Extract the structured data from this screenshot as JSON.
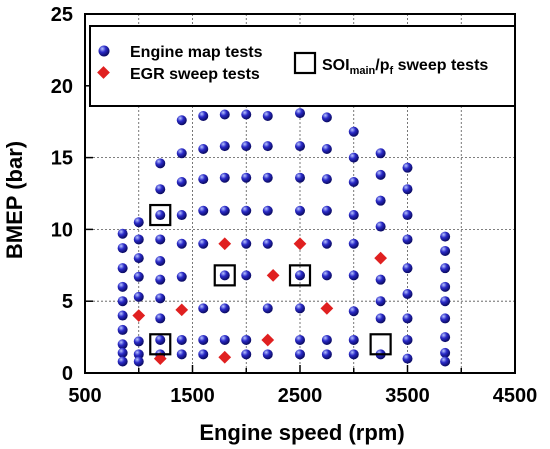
{
  "chart_data": {
    "type": "scatter",
    "xlabel": "Engine speed (rpm)",
    "ylabel": "BMEP (bar)",
    "xlim": [
      500,
      4500
    ],
    "ylim": [
      0,
      25
    ],
    "x_ticks": [
      "500",
      "1500",
      "2500",
      "3500",
      "4500"
    ],
    "y_ticks": [
      "0",
      "5",
      "10",
      "15",
      "20",
      "25"
    ],
    "grid": "dotted",
    "legend_placement": "top",
    "legend": {
      "engine_map": "Engine map tests",
      "egr": "EGR sweep tests",
      "soi_main": "SOI",
      "soi_sub": "main",
      "soi_mid": "/p",
      "soi_sub2": "f",
      "soi_tail": " sweep tests"
    },
    "colors": {
      "engine_map": "#1a1aa8",
      "egr": "#e02020",
      "soi": "#000000"
    },
    "series": [
      {
        "name": "Engine map tests",
        "marker": "circle",
        "points": [
          [
            850,
            9.7
          ],
          [
            850,
            8.7
          ],
          [
            850,
            7.3
          ],
          [
            850,
            6.0
          ],
          [
            850,
            5.0
          ],
          [
            850,
            4.0
          ],
          [
            850,
            3.0
          ],
          [
            850,
            2.0
          ],
          [
            850,
            1.4
          ],
          [
            850,
            0.8
          ],
          [
            1000,
            10.5
          ],
          [
            1000,
            9.3
          ],
          [
            1000,
            8.0
          ],
          [
            1000,
            6.7
          ],
          [
            1000,
            5.3
          ],
          [
            1000,
            2.2
          ],
          [
            1000,
            1.3
          ],
          [
            1000,
            0.8
          ],
          [
            1200,
            14.6
          ],
          [
            1200,
            12.8
          ],
          [
            1200,
            11.0
          ],
          [
            1200,
            9.3
          ],
          [
            1200,
            7.8
          ],
          [
            1200,
            6.5
          ],
          [
            1200,
            5.2
          ],
          [
            1200,
            3.8
          ],
          [
            1200,
            2.3
          ],
          [
            1200,
            1.3
          ],
          [
            1400,
            17.6
          ],
          [
            1400,
            15.3
          ],
          [
            1400,
            13.3
          ],
          [
            1400,
            11.0
          ],
          [
            1400,
            9.0
          ],
          [
            1400,
            6.7
          ],
          [
            1400,
            2.3
          ],
          [
            1400,
            1.3
          ],
          [
            1600,
            17.9
          ],
          [
            1600,
            15.6
          ],
          [
            1600,
            13.5
          ],
          [
            1600,
            11.3
          ],
          [
            1600,
            9.0
          ],
          [
            1600,
            4.5
          ],
          [
            1600,
            2.3
          ],
          [
            1600,
            1.3
          ],
          [
            1800,
            18.0
          ],
          [
            1800,
            15.8
          ],
          [
            1800,
            13.6
          ],
          [
            1800,
            11.3
          ],
          [
            1800,
            6.8
          ],
          [
            1800,
            4.5
          ],
          [
            1800,
            2.3
          ],
          [
            2000,
            18.0
          ],
          [
            2000,
            15.8
          ],
          [
            2000,
            13.6
          ],
          [
            2000,
            11.3
          ],
          [
            2000,
            9.0
          ],
          [
            2000,
            6.8
          ],
          [
            2000,
            2.3
          ],
          [
            2000,
            1.3
          ],
          [
            2200,
            17.9
          ],
          [
            2200,
            15.8
          ],
          [
            2200,
            13.6
          ],
          [
            2200,
            11.3
          ],
          [
            2200,
            9.0
          ],
          [
            2200,
            4.5
          ],
          [
            2200,
            1.3
          ],
          [
            2500,
            18.1
          ],
          [
            2500,
            15.8
          ],
          [
            2500,
            13.6
          ],
          [
            2500,
            11.3
          ],
          [
            2500,
            6.8
          ],
          [
            2500,
            4.5
          ],
          [
            2500,
            2.3
          ],
          [
            2500,
            1.3
          ],
          [
            2750,
            17.8
          ],
          [
            2750,
            15.6
          ],
          [
            2750,
            13.5
          ],
          [
            2750,
            11.3
          ],
          [
            2750,
            9.0
          ],
          [
            2750,
            6.8
          ],
          [
            2750,
            2.3
          ],
          [
            2750,
            1.3
          ],
          [
            3000,
            16.8
          ],
          [
            3000,
            15.0
          ],
          [
            3000,
            13.3
          ],
          [
            3000,
            11.0
          ],
          [
            3000,
            9.0
          ],
          [
            3000,
            6.8
          ],
          [
            3000,
            4.3
          ],
          [
            3000,
            2.3
          ],
          [
            3000,
            1.3
          ],
          [
            3250,
            15.3
          ],
          [
            3250,
            13.8
          ],
          [
            3250,
            12.0
          ],
          [
            3250,
            10.2
          ],
          [
            3250,
            6.5
          ],
          [
            3250,
            5.0
          ],
          [
            3250,
            3.8
          ],
          [
            3250,
            1.3
          ],
          [
            3500,
            14.3
          ],
          [
            3500,
            12.8
          ],
          [
            3500,
            11.0
          ],
          [
            3500,
            9.3
          ],
          [
            3500,
            7.3
          ],
          [
            3500,
            5.5
          ],
          [
            3500,
            3.8
          ],
          [
            3500,
            2.3
          ],
          [
            3500,
            1.0
          ],
          [
            3850,
            9.5
          ],
          [
            3850,
            8.5
          ],
          [
            3850,
            7.3
          ],
          [
            3850,
            6.0
          ],
          [
            3850,
            5.0
          ],
          [
            3850,
            3.8
          ],
          [
            3850,
            2.5
          ],
          [
            3850,
            1.4
          ],
          [
            3850,
            0.8
          ]
        ]
      },
      {
        "name": "EGR sweep tests",
        "marker": "diamond",
        "points": [
          [
            1000,
            4.0
          ],
          [
            1200,
            1.0
          ],
          [
            1400,
            4.4
          ],
          [
            1800,
            9.0
          ],
          [
            1800,
            1.1
          ],
          [
            2200,
            2.3
          ],
          [
            2250,
            6.8
          ],
          [
            2500,
            9.0
          ],
          [
            2750,
            4.5
          ],
          [
            3250,
            8.0
          ]
        ]
      },
      {
        "name": "SOI sweep tests",
        "marker": "square",
        "points": [
          [
            1200,
            11.0
          ],
          [
            1200,
            2.0
          ],
          [
            1800,
            6.8
          ],
          [
            2500,
            6.8
          ],
          [
            3250,
            2.0
          ]
        ]
      }
    ]
  }
}
